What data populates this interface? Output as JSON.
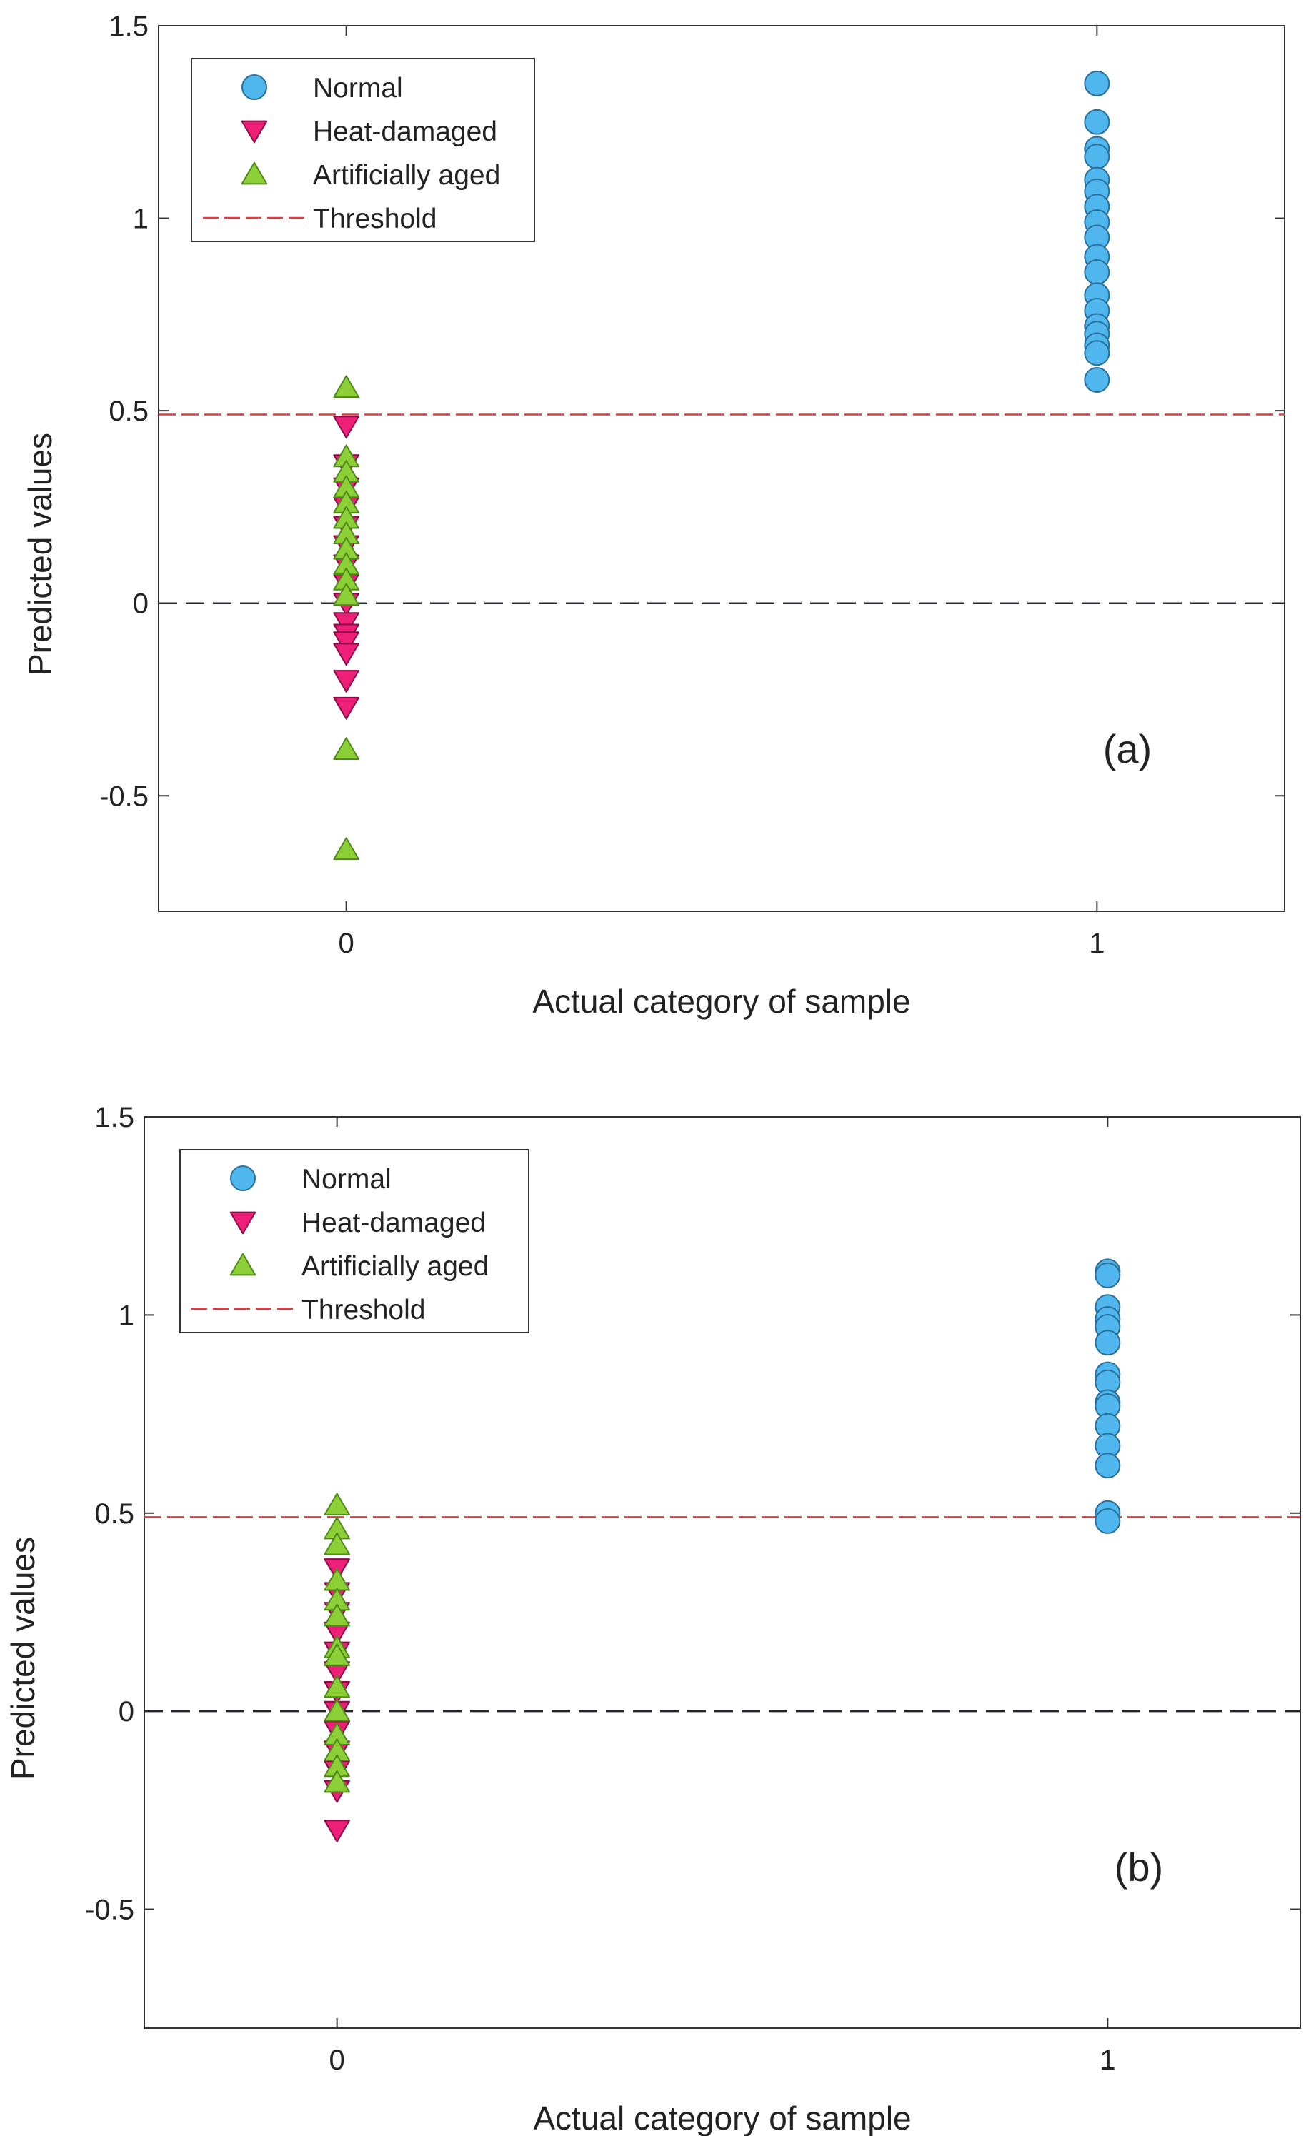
{
  "chart_data": [
    {
      "type": "scatter",
      "panel_label": "(a)",
      "xlabel": "Actual category of sample",
      "ylabel": "Predicted values",
      "xlim": [
        -0.25,
        1.25
      ],
      "ylim": [
        -0.8,
        1.5
      ],
      "xticks": [
        0,
        1
      ],
      "xtick_labels": [
        "0",
        "1"
      ],
      "yticks": [
        -0.5,
        0,
        0.5,
        1,
        1.5
      ],
      "ytick_labels": [
        "-0.5",
        "0",
        "0.5",
        "1",
        "1.5"
      ],
      "grid": false,
      "legend_position": "top-left",
      "threshold": 0.49,
      "zero_line": 0,
      "series": [
        {
          "name": "Normal",
          "marker": "circle",
          "color": "#4fb6ee",
          "x": 1,
          "values": [
            1.35,
            1.25,
            1.18,
            1.16,
            1.1,
            1.07,
            1.03,
            0.99,
            0.95,
            0.9,
            0.86,
            0.8,
            0.76,
            0.72,
            0.7,
            0.67,
            0.65,
            0.58
          ]
        },
        {
          "name": "Heat-damaged",
          "marker": "triangle-down",
          "color": "#ee1f78",
          "x": 0,
          "values": [
            0.46,
            0.36,
            0.3,
            0.25,
            0.2,
            0.15,
            0.1,
            0.05,
            0.0,
            -0.05,
            -0.08,
            -0.1,
            -0.13,
            -0.2,
            -0.27
          ]
        },
        {
          "name": "Artificially aged",
          "marker": "triangle-up",
          "color": "#8ccf37",
          "x": 0,
          "values": [
            0.56,
            0.38,
            0.34,
            0.3,
            0.26,
            0.22,
            0.18,
            0.14,
            0.1,
            0.06,
            0.02,
            -0.38,
            -0.64
          ]
        }
      ],
      "legend": [
        "Normal",
        "Heat-damaged",
        "Artificially aged",
        "Threshold"
      ]
    },
    {
      "type": "scatter",
      "panel_label": "(b)",
      "xlabel": "Actual category of sample",
      "ylabel": "Predicted values",
      "xlim": [
        -0.25,
        1.25
      ],
      "ylim": [
        -0.8,
        1.5
      ],
      "xticks": [
        0,
        1
      ],
      "xtick_labels": [
        "0",
        "1"
      ],
      "yticks": [
        -0.5,
        0,
        0.5,
        1,
        1.5
      ],
      "ytick_labels": [
        "-0.5",
        "0",
        "0.5",
        "1",
        "1.5"
      ],
      "grid": false,
      "legend_position": "top-left",
      "threshold": 0.49,
      "zero_line": 0,
      "series": [
        {
          "name": "Normal",
          "marker": "circle",
          "color": "#4fb6ee",
          "x": 1,
          "values": [
            1.11,
            1.1,
            1.02,
            0.99,
            0.97,
            0.93,
            0.85,
            0.83,
            0.78,
            0.77,
            0.72,
            0.67,
            0.62,
            0.5,
            0.48
          ]
        },
        {
          "name": "Heat-damaged",
          "marker": "triangle-down",
          "color": "#ee1f78",
          "x": 0,
          "values": [
            0.36,
            0.3,
            0.25,
            0.2,
            0.15,
            0.1,
            0.05,
            0.0,
            -0.05,
            -0.1,
            -0.15,
            -0.2,
            -0.3
          ]
        },
        {
          "name": "Artificially aged",
          "marker": "triangle-up",
          "color": "#8ccf37",
          "x": 0,
          "values": [
            0.52,
            0.46,
            0.42,
            0.33,
            0.28,
            0.24,
            0.16,
            0.14,
            0.06,
            0.0,
            -0.06,
            -0.1,
            -0.14,
            -0.18
          ]
        }
      ],
      "legend": [
        "Normal",
        "Heat-damaged",
        "Artificially aged",
        "Threshold"
      ]
    }
  ]
}
